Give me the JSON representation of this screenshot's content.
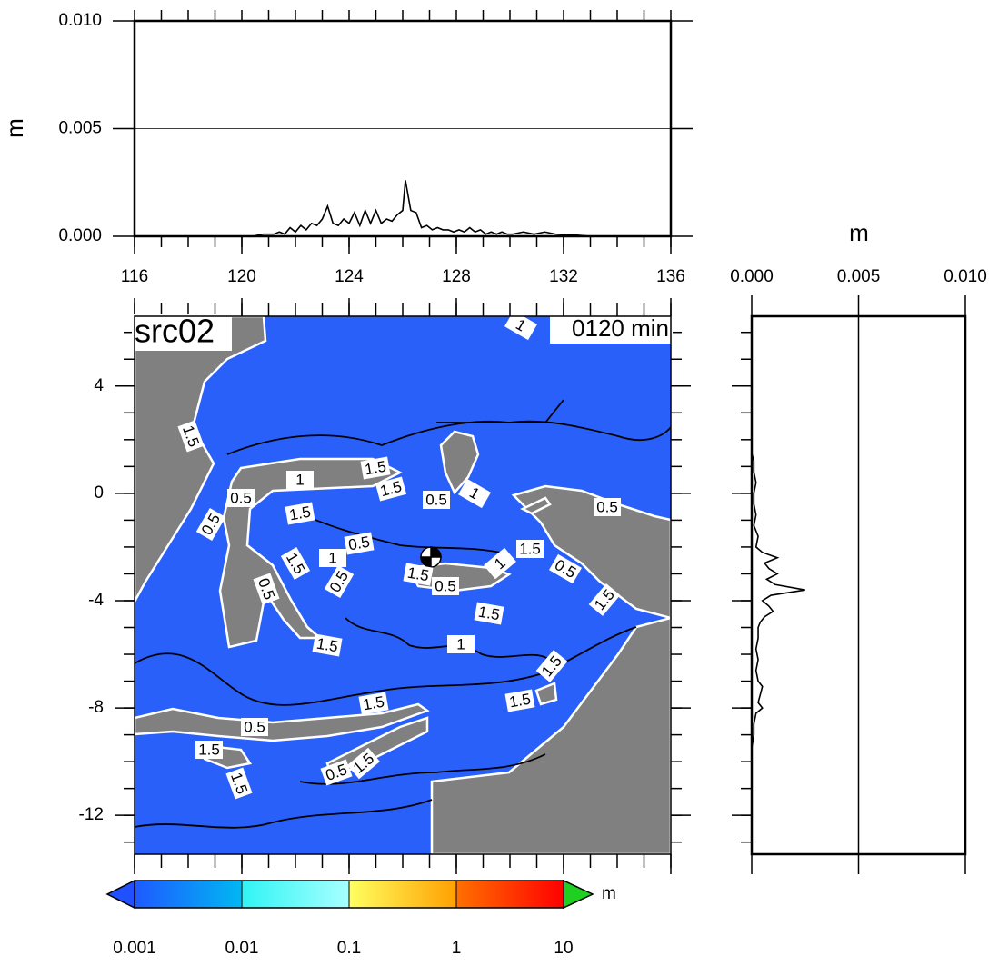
{
  "chart_data": [
    {
      "type": "line",
      "ylabel": "m",
      "color": "#000000",
      "grid": true,
      "x": [
        120.4,
        120.6,
        120.8,
        121.0,
        121.2,
        121.4,
        121.6,
        121.8,
        122.0,
        122.2,
        122.4,
        122.6,
        122.8,
        123.0,
        123.2,
        123.4,
        123.6,
        123.8,
        124.0,
        124.2,
        124.4,
        124.6,
        124.8,
        125.0,
        125.2,
        125.4,
        125.6,
        125.8,
        126.0,
        126.1,
        126.3,
        126.5,
        126.7,
        126.9,
        127.1,
        127.3,
        127.5,
        127.7,
        127.9,
        128.1,
        128.3,
        128.5,
        128.7,
        128.9,
        129.1,
        129.3,
        129.5,
        129.7,
        129.9,
        130.1,
        130.5,
        130.9,
        131.3,
        131.7,
        132.1,
        132.5,
        133.0
      ],
      "values": [
        0,
        5e-05,
        0.0001,
        0.0001,
        0.0001,
        0.0002,
        0.0001,
        0.0004,
        0.0002,
        0.0005,
        0.0003,
        0.0006,
        0.0005,
        0.0008,
        0.0014,
        0.0006,
        0.0005,
        0.0008,
        0.0006,
        0.0011,
        0.0005,
        0.0012,
        0.0006,
        0.0012,
        0.0006,
        0.0008,
        0.0007,
        0.001,
        0.0012,
        0.0026,
        0.0012,
        0.0011,
        0.0004,
        0.0005,
        0.0003,
        0.0004,
        0.0003,
        0.0003,
        0.0002,
        0.0003,
        0.0002,
        0.0004,
        0.0002,
        0.0003,
        0.0001,
        0.0002,
        0.0001,
        0.0002,
        0.0001,
        0.0001,
        0.0002,
        0.0001,
        0.0002,
        0.0001,
        5e-05,
        5e-05,
        0
      ],
      "xlim": [
        116,
        136
      ],
      "xticks": [
        116,
        120,
        124,
        128,
        132,
        136
      ],
      "ylim": [
        0,
        0.01
      ],
      "yticks": [
        {
          "value": 0,
          "label": "0.000"
        },
        {
          "value": 0.005,
          "label": "0.005"
        },
        {
          "value": 0.01,
          "label": "0.010"
        }
      ]
    },
    {
      "type": "map",
      "title": "src02",
      "subtitle": "0120 min",
      "xlim": [
        116,
        136
      ],
      "ylim": [
        -13.45,
        6.6
      ],
      "yticks": [
        4,
        0,
        -4,
        -8,
        -12
      ],
      "contour_labels": [
        1.5,
        0.5,
        1,
        1.5,
        1.5,
        0.5,
        1.5,
        0.5,
        1.5,
        1,
        0.5,
        0.5,
        1.5,
        0.5,
        1.5,
        0.5,
        1.5,
        1,
        1.5,
        1,
        1.5,
        1.5,
        1.5,
        0.5,
        1.5,
        1.5,
        0.5,
        1.5,
        1,
        0.5,
        1,
        0.5,
        1.5
      ]
    },
    {
      "type": "hline",
      "xlabel": "m",
      "color": "#000000",
      "grid": true,
      "y": [
        1.5,
        1.2,
        0.8,
        0.4,
        0,
        -0.4,
        -0.8,
        -1.2,
        -1.6,
        -2.0,
        -2.2,
        -2.4,
        -2.6,
        -2.8,
        -3.0,
        -3.2,
        -3.4,
        -3.6,
        -3.8,
        -4.0,
        -4.2,
        -4.4,
        -4.6,
        -4.8,
        -5.0,
        -5.4,
        -5.8,
        -6.2,
        -6.6,
        -7.0,
        -7.2,
        -7.5,
        -7.8,
        -8.0,
        -8.2,
        -8.6,
        -9.0,
        -9.5
      ],
      "values": [
        0,
        0.0001,
        0.0001,
        0.0002,
        0.0001,
        0.0001,
        0.0002,
        0.0001,
        0.0003,
        0.0002,
        0.0005,
        0.0012,
        0.0006,
        0.0008,
        0.0012,
        0.0007,
        0.0011,
        0.0025,
        0.0009,
        0.0005,
        0.0008,
        0.001,
        0.0006,
        0.0004,
        0.0003,
        0.0003,
        0.0002,
        0.0003,
        0.0002,
        0.0003,
        0.0005,
        0.0004,
        0.0003,
        0.0005,
        0.0002,
        0.0001,
        0.0001,
        0
      ],
      "xlim": [
        0,
        0.01
      ],
      "xticks": [
        {
          "value": 0,
          "label": "0.000"
        },
        {
          "value": 0.005,
          "label": "0.005"
        },
        {
          "value": 0.01,
          "label": "0.010"
        }
      ],
      "ylim": [
        -13.45,
        6.6
      ]
    },
    {
      "type": "colorbar",
      "label": "m",
      "xscale": "log",
      "xlim": [
        0.001,
        10
      ],
      "xticks": [
        0.001,
        0.01,
        0.1,
        1,
        10
      ],
      "colors": [
        [
          "#1e5aff",
          "#00b8f2"
        ],
        [
          "#30f4f4",
          "#a8ffff"
        ],
        [
          "#ffff60",
          "#ffa000"
        ],
        [
          "#ff7000",
          "#ff0000"
        ]
      ],
      "under_color": "#2050ff",
      "over_color": "#20d020"
    }
  ]
}
